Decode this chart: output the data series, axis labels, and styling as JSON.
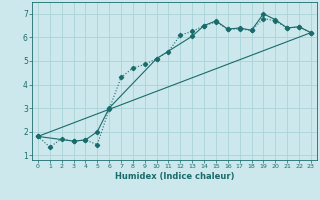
{
  "xlabel": "Humidex (Indice chaleur)",
  "bg_color": "#cce8ec",
  "grid_color": "#aad4d8",
  "line_color": "#1a6b6b",
  "xlim": [
    -0.5,
    23.5
  ],
  "ylim": [
    0.8,
    7.5
  ],
  "yticks": [
    1,
    2,
    3,
    4,
    5,
    6,
    7
  ],
  "xticks": [
    0,
    1,
    2,
    3,
    4,
    5,
    6,
    7,
    8,
    9,
    10,
    11,
    12,
    13,
    14,
    15,
    16,
    17,
    18,
    19,
    20,
    21,
    22,
    23
  ],
  "line1_x": [
    0,
    1,
    2,
    3,
    4,
    5,
    6,
    7,
    8,
    9,
    10,
    11,
    12,
    13,
    14,
    15,
    16,
    17,
    18,
    19,
    20,
    21,
    22,
    23
  ],
  "line1_y": [
    1.8,
    1.35,
    1.7,
    1.6,
    1.65,
    1.45,
    2.95,
    4.3,
    4.7,
    4.85,
    5.1,
    5.4,
    6.1,
    6.25,
    6.5,
    6.65,
    6.35,
    6.35,
    6.3,
    6.8,
    6.7,
    6.4,
    6.45,
    6.2
  ],
  "line2_x": [
    0,
    3,
    4,
    5,
    6,
    10,
    13,
    14,
    15,
    16,
    17,
    18,
    19,
    20,
    21,
    22,
    23
  ],
  "line2_y": [
    1.8,
    1.6,
    1.65,
    2.0,
    3.0,
    5.1,
    6.05,
    6.5,
    6.7,
    6.35,
    6.4,
    6.3,
    7.0,
    6.75,
    6.4,
    6.45,
    6.2
  ],
  "line3_x": [
    0,
    23
  ],
  "line3_y": [
    1.8,
    6.2
  ]
}
